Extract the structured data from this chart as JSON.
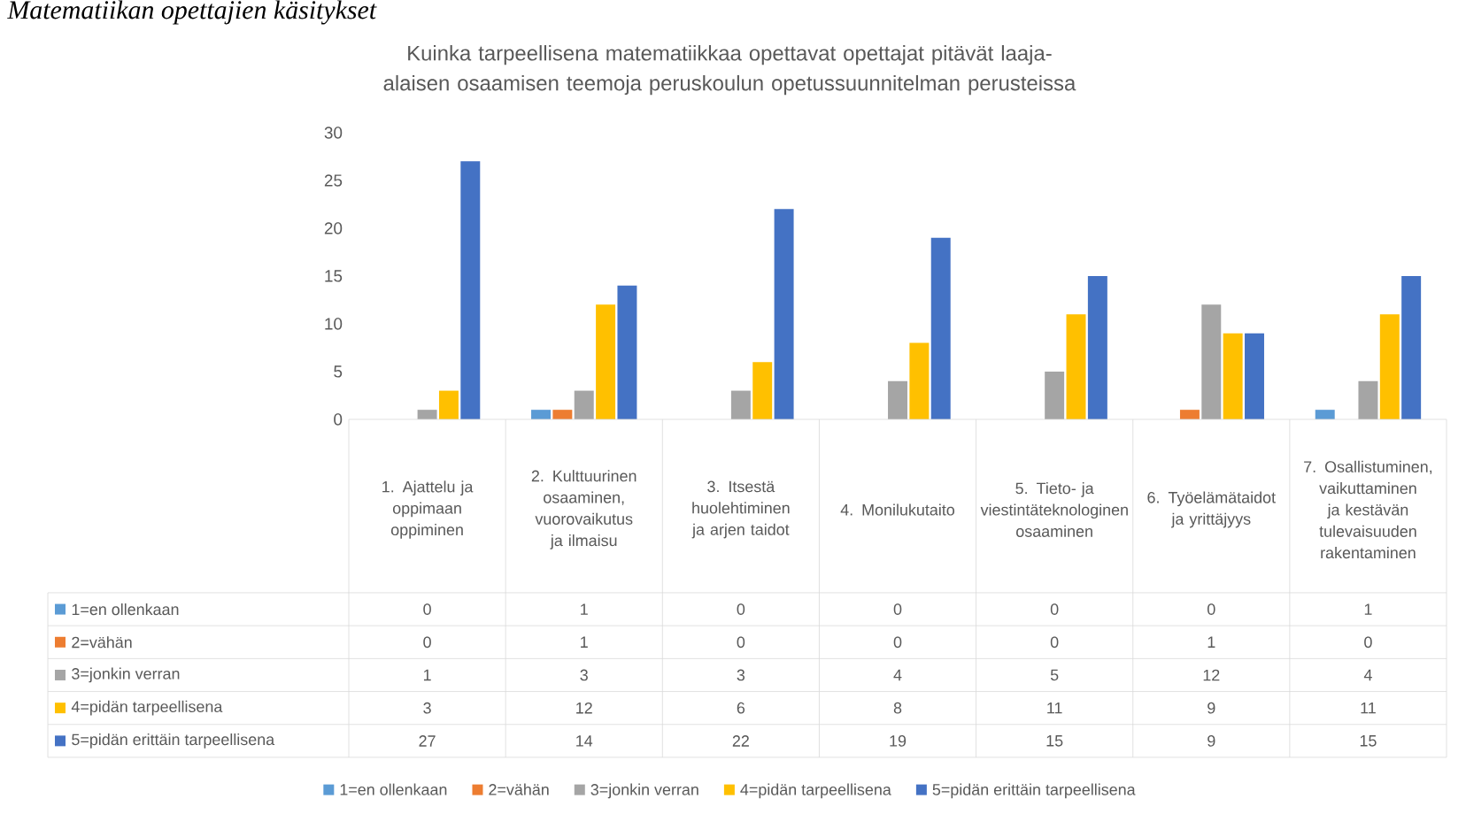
{
  "chart_data": {
    "type": "bar",
    "title": "Kuinka tarpeellisena matematiikkaa opettavat opettajat pitävät laaja-alaisen osaamisen teemoja peruskoulun opetussuunnitelman perusteissa",
    "annotations": [
      "Matematiikan opettajien käsitykset"
    ],
    "categories": [
      "1. Ajattelu ja oppimaan oppiminen",
      "2. Kulttuurinen osaaminen, vuorovaikutus ja ilmaisu",
      "3. Itsestä huolehtiminen ja arjen taidot",
      "4. Monilukutaito",
      "5. Tieto- ja viestintäteknologinen osaaminen",
      "6. Työelämätaidot ja yrittäjyys",
      "7. Osallistuminen, vaikuttaminen ja kestävän tulevaisuuden rakentaminen"
    ],
    "series": [
      {
        "name": "1=en ollenkaan",
        "color": "#5b9bd5",
        "values": [
          0,
          1,
          0,
          0,
          0,
          0,
          1
        ]
      },
      {
        "name": "2=vähän",
        "color": "#ed7d31",
        "values": [
          0,
          1,
          0,
          0,
          0,
          1,
          0
        ]
      },
      {
        "name": "3=jonkin verran",
        "color": "#a5a5a5",
        "values": [
          1,
          3,
          3,
          4,
          5,
          12,
          4
        ]
      },
      {
        "name": "4=pidän tarpeellisena",
        "color": "#ffc000",
        "values": [
          3,
          12,
          6,
          8,
          11,
          9,
          11
        ]
      },
      {
        "name": "5=pidän erittäin tarpeellisena",
        "color": "#4472c4",
        "values": [
          27,
          14,
          22,
          19,
          15,
          9,
          15
        ]
      }
    ],
    "ylim": [
      0,
      30
    ],
    "yticks": [
      0,
      5,
      10,
      15,
      20,
      25,
      30
    ],
    "data_labels": true,
    "legend": "bottom"
  }
}
